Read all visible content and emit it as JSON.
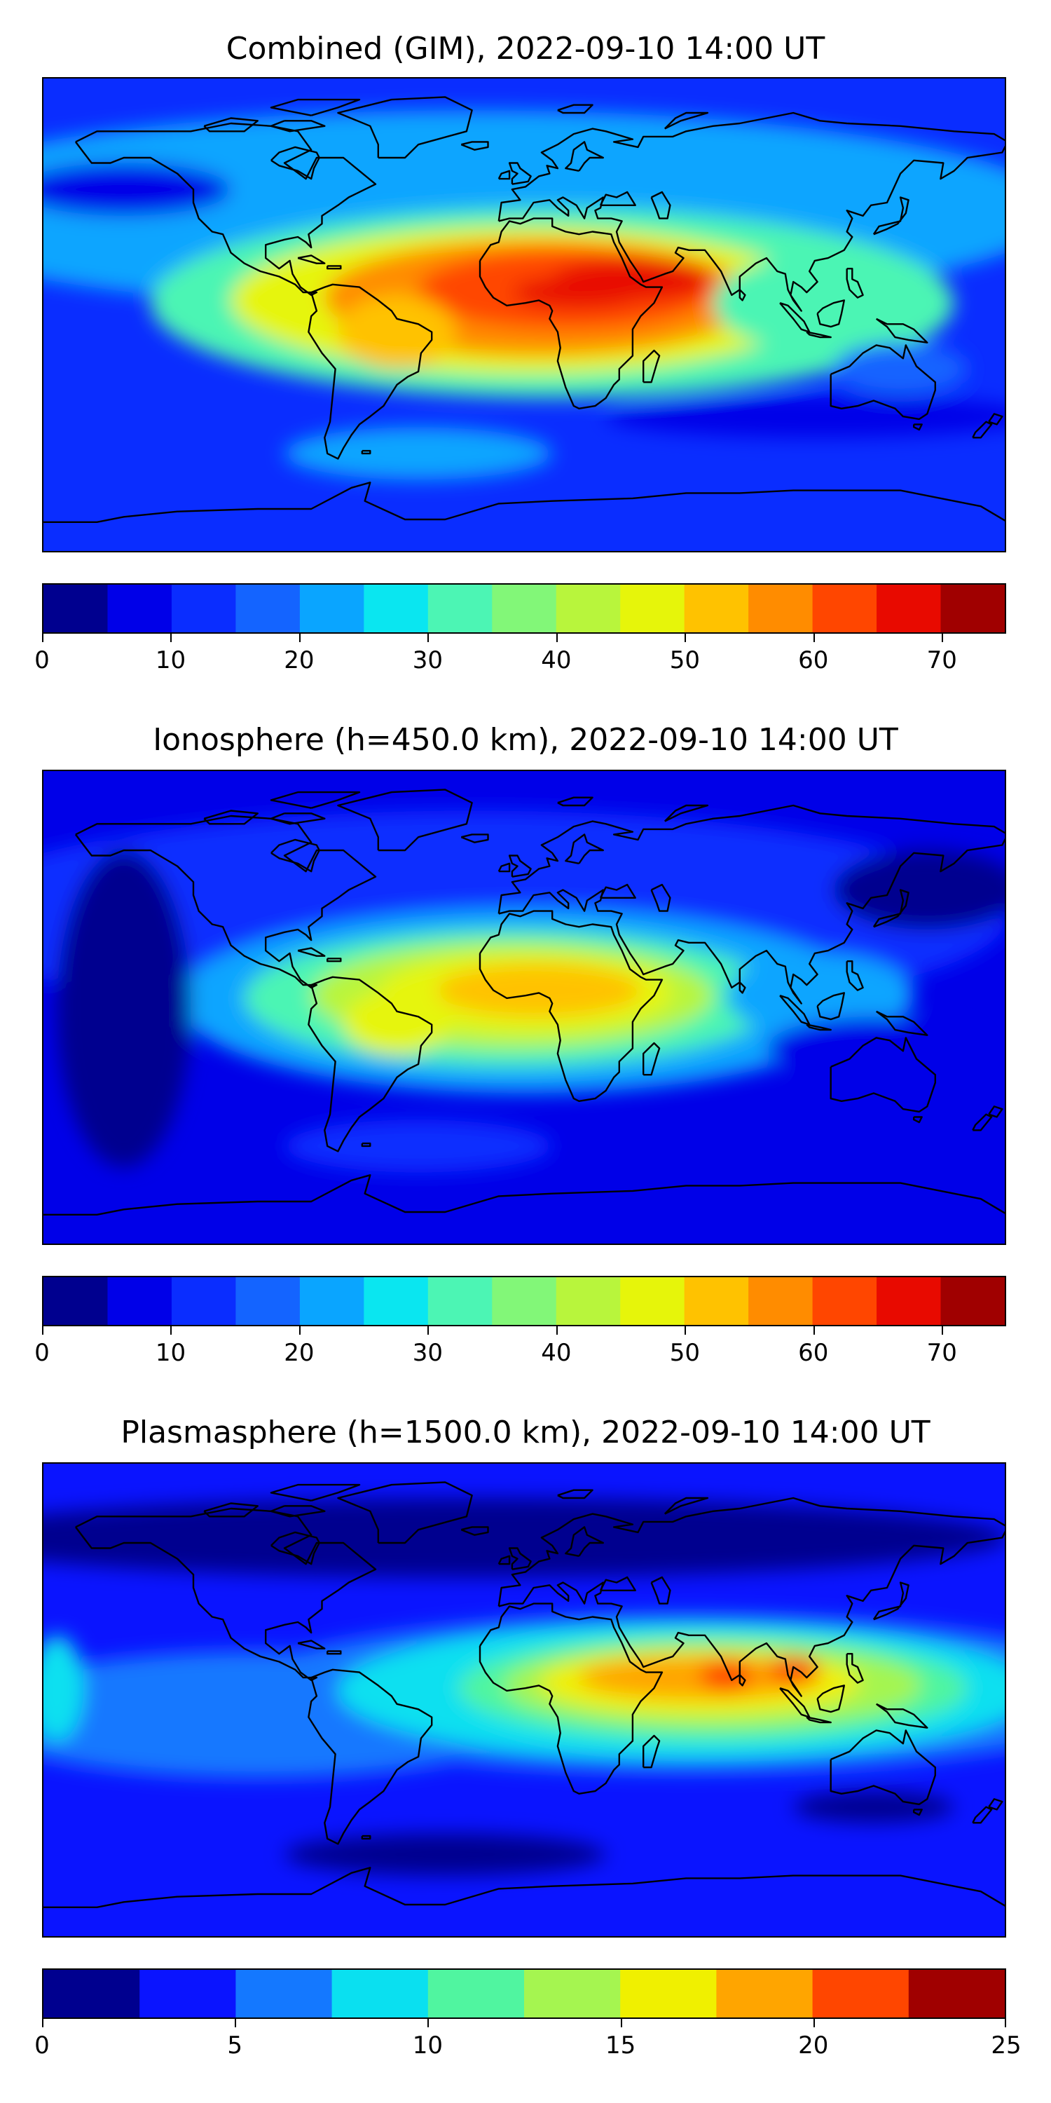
{
  "panels": [
    {
      "title": "Combined (GIM), 2022-09-10 14:00 UT",
      "colorbar": {
        "min": 0,
        "max": 75,
        "step": 5,
        "ticks": [
          "0",
          "10",
          "20",
          "30",
          "40",
          "50",
          "60",
          "70"
        ],
        "tick_values": [
          0,
          10,
          20,
          30,
          40,
          50,
          60,
          70
        ],
        "colors": [
          "#00008f",
          "#0000e8",
          "#0a2dff",
          "#1464ff",
          "#0aa5ff",
          "#0ae6f0",
          "#4cf5b4",
          "#82f778",
          "#b8f53c",
          "#e6f50a",
          "#ffc200",
          "#ff8c00",
          "#ff4600",
          "#e80a00",
          "#a00000"
        ]
      },
      "field": {
        "background_level": 2,
        "blobs": [
          {
            "lon": -20,
            "lat": 40,
            "rx": 220,
            "ry": 38,
            "level": 4
          },
          {
            "lon": 10,
            "lat": 5,
            "rx": 150,
            "ry": 36,
            "level": 6
          },
          {
            "lon": 0,
            "lat": 6,
            "rx": 110,
            "ry": 28,
            "level": 9
          },
          {
            "lon": 5,
            "lat": 7,
            "rx": 80,
            "ry": 22,
            "level": 11
          },
          {
            "lon": 15,
            "lat": 10,
            "rx": 55,
            "ry": 15,
            "level": 12
          },
          {
            "lon": 40,
            "lat": 14,
            "rx": 30,
            "ry": 8,
            "level": 13
          },
          {
            "lon": 20,
            "lat": 9,
            "rx": 25,
            "ry": 6,
            "level": 13
          },
          {
            "lon": -48,
            "lat": -6,
            "rx": 22,
            "ry": 14,
            "level": 10
          },
          {
            "lon": 110,
            "lat": 5,
            "rx": 40,
            "ry": 18,
            "level": 6
          },
          {
            "lon": 140,
            "lat": -20,
            "rx": 25,
            "ry": 10,
            "level": 3
          },
          {
            "lon": -40,
            "lat": -52,
            "rx": 50,
            "ry": 10,
            "level": 4
          },
          {
            "lon": 110,
            "lat": -38,
            "rx": 80,
            "ry": 8,
            "level": 1
          },
          {
            "lon": -150,
            "lat": 48,
            "rx": 40,
            "ry": 10,
            "level": 1
          }
        ]
      }
    },
    {
      "title": "Ionosphere  (h=450.0 km), 2022-09-10 14:00 UT",
      "colorbar": {
        "min": 0,
        "max": 75,
        "step": 5,
        "ticks": [
          "0",
          "10",
          "20",
          "30",
          "40",
          "50",
          "60",
          "70"
        ],
        "tick_values": [
          0,
          10,
          20,
          30,
          40,
          50,
          60,
          70
        ],
        "colors": [
          "#00008f",
          "#0000e8",
          "#0a2dff",
          "#1464ff",
          "#0aa5ff",
          "#0ae6f0",
          "#4cf5b4",
          "#82f778",
          "#b8f53c",
          "#e6f50a",
          "#ffc200",
          "#ff8c00",
          "#ff4600",
          "#e80a00",
          "#a00000"
        ]
      },
      "field": {
        "background_level": 1,
        "blobs": [
          {
            "lon": -20,
            "lat": 35,
            "rx": 200,
            "ry": 40,
            "level": 2
          },
          {
            "lon": 0,
            "lat": 3,
            "rx": 130,
            "ry": 35,
            "level": 4
          },
          {
            "lon": -5,
            "lat": 4,
            "rx": 100,
            "ry": 26,
            "level": 6
          },
          {
            "lon": -5,
            "lat": 5,
            "rx": 75,
            "ry": 20,
            "level": 8
          },
          {
            "lon": 0,
            "lat": 6,
            "rx": 55,
            "ry": 15,
            "level": 9
          },
          {
            "lon": 5,
            "lat": 7,
            "rx": 38,
            "ry": 10,
            "level": 10
          },
          {
            "lon": -48,
            "lat": -5,
            "rx": 20,
            "ry": 12,
            "level": 9
          },
          {
            "lon": 110,
            "lat": 5,
            "rx": 35,
            "ry": 16,
            "level": 4
          },
          {
            "lon": 130,
            "lat": -15,
            "rx": 40,
            "ry": 12,
            "level": 1
          },
          {
            "lon": -150,
            "lat": 0,
            "rx": 25,
            "ry": 60,
            "level": 0
          },
          {
            "lon": 150,
            "lat": 45,
            "rx": 35,
            "ry": 15,
            "level": 0
          },
          {
            "lon": -40,
            "lat": -52,
            "rx": 50,
            "ry": 10,
            "level": 2
          }
        ]
      }
    },
    {
      "title": "Plasmasphere (h=1500.0 km), 2022-09-10 14:00 UT",
      "colorbar": {
        "min": 0,
        "max": 25,
        "step": 2.5,
        "ticks": [
          "0",
          "5",
          "10",
          "15",
          "20",
          "25"
        ],
        "tick_values": [
          0,
          5,
          10,
          15,
          20,
          25
        ],
        "colors": [
          "#00008f",
          "#0a14ff",
          "#1478ff",
          "#0ae0f0",
          "#50f5a0",
          "#a5f550",
          "#f0f000",
          "#ffa500",
          "#ff4600",
          "#a00000"
        ]
      },
      "field": {
        "background_level": 1,
        "blobs": [
          {
            "lon": -20,
            "lat": 62,
            "rx": 200,
            "ry": 15,
            "level": 0
          },
          {
            "lon": 60,
            "lat": 3,
            "rx": 170,
            "ry": 30,
            "level": 2
          },
          {
            "lon": -100,
            "lat": -5,
            "rx": 110,
            "ry": 24,
            "level": 2
          },
          {
            "lon": 60,
            "lat": 4,
            "rx": 130,
            "ry": 26,
            "level": 3
          },
          {
            "lon": 70,
            "lat": 5,
            "rx": 95,
            "ry": 20,
            "level": 4
          },
          {
            "lon": 70,
            "lat": 6,
            "rx": 78,
            "ry": 16,
            "level": 5
          },
          {
            "lon": 65,
            "lat": 7,
            "rx": 60,
            "ry": 12,
            "level": 6
          },
          {
            "lon": 65,
            "lat": 9,
            "rx": 45,
            "ry": 8,
            "level": 7
          },
          {
            "lon": 75,
            "lat": 10,
            "rx": 10,
            "ry": 6,
            "level": 8
          },
          {
            "lon": 100,
            "lat": 12,
            "rx": 10,
            "ry": 5,
            "level": 8
          },
          {
            "lon": -175,
            "lat": 5,
            "rx": 10,
            "ry": 20,
            "level": 3
          },
          {
            "lon": 130,
            "lat": -40,
            "rx": 30,
            "ry": 6,
            "level": 0
          },
          {
            "lon": -30,
            "lat": -58,
            "rx": 60,
            "ry": 8,
            "level": 0
          }
        ]
      }
    }
  ]
}
